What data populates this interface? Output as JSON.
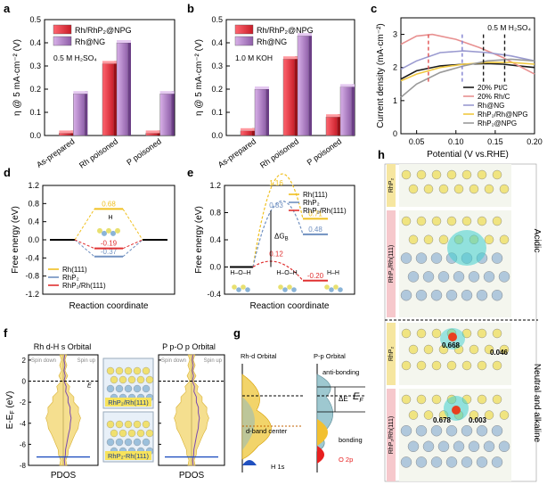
{
  "panels": {
    "a": "a",
    "b": "b",
    "c": "c",
    "d": "d",
    "e": "e",
    "f": "f",
    "g": "g",
    "h": "h"
  },
  "chart_data": [
    {
      "id": "a",
      "type": "bar",
      "categories": [
        "As-prepared",
        "Rh poisoned",
        "P poisoned"
      ],
      "series": [
        {
          "name": "Rh/RhP₂@NPG",
          "color": "#e8383d",
          "values": [
            0.01,
            0.31,
            0.01
          ]
        },
        {
          "name": "Rh@NG",
          "color": "#b080c8",
          "values": [
            0.18,
            0.4,
            0.18
          ]
        }
      ],
      "annotation": "0.5 M H₂SO₄",
      "ylabel": "η @ 5 mA·cm⁻² (V)",
      "ylim": [
        0.0,
        0.5
      ],
      "yticks": [
        "0.0",
        "0.1",
        "0.2",
        "0.3",
        "0.4",
        "0.5"
      ]
    },
    {
      "id": "b",
      "type": "bar",
      "categories": [
        "As-prepared",
        "Rh poisoned",
        "P poisoned"
      ],
      "series": [
        {
          "name": "Rh/RhP₂@NPG",
          "color": "#e8383d",
          "values": [
            0.02,
            0.33,
            0.08
          ]
        },
        {
          "name": "Rh@NG",
          "color": "#b080c8",
          "values": [
            0.2,
            0.43,
            0.21
          ]
        }
      ],
      "annotation": "1.0 M KOH",
      "ylabel": "η @ 5 mA·cm⁻² (V)",
      "ylim": [
        0.0,
        0.5
      ],
      "yticks": [
        "0.0",
        "0.1",
        "0.2",
        "0.3",
        "0.4",
        "0.5"
      ]
    },
    {
      "id": "c",
      "type": "line",
      "annotation": "0.5 M H₂SO₄",
      "xlabel": "Potential (V vs.RHE)",
      "ylabel": "Current density (mA·cm⁻²)",
      "xlim": [
        0.03,
        0.2
      ],
      "ylim": [
        0.0,
        3.5
      ],
      "xticks": [
        "0.05",
        "0.10",
        "0.15",
        "0.20"
      ],
      "yticks": [
        "0",
        "1",
        "2",
        "3"
      ],
      "series": [
        {
          "name": "20% Pt/C",
          "color": "#1a1a1a",
          "x": [
            0.03,
            0.05,
            0.08,
            0.11,
            0.14,
            0.16,
            0.18,
            0.2
          ],
          "y": [
            1.65,
            1.9,
            2.05,
            2.1,
            2.12,
            2.1,
            2.05,
            2.0
          ]
        },
        {
          "name": "20% Rh/C",
          "color": "#e89090",
          "x": [
            0.03,
            0.05,
            0.07,
            0.1,
            0.13,
            0.16,
            0.18,
            0.2
          ],
          "y": [
            2.7,
            2.95,
            3.0,
            2.85,
            2.6,
            2.3,
            2.05,
            1.8
          ]
        },
        {
          "name": "Rh@NG",
          "color": "#9a9ad0",
          "x": [
            0.03,
            0.05,
            0.08,
            0.11,
            0.14,
            0.17,
            0.2
          ],
          "y": [
            1.95,
            2.2,
            2.45,
            2.5,
            2.45,
            2.35,
            2.2
          ]
        },
        {
          "name": "RhP₂/Rh@NPG",
          "color": "#f0c840",
          "x": [
            0.03,
            0.05,
            0.08,
            0.11,
            0.14,
            0.17,
            0.2
          ],
          "y": [
            1.6,
            1.8,
            2.0,
            2.1,
            2.15,
            2.15,
            2.1
          ]
        },
        {
          "name": "RhP₂@NPG",
          "color": "#9a9a9a",
          "x": [
            0.03,
            0.05,
            0.08,
            0.11,
            0.14,
            0.17,
            0.2
          ],
          "y": [
            1.1,
            1.5,
            1.85,
            2.05,
            2.2,
            2.25,
            2.2
          ]
        }
      ],
      "markers": [
        {
          "x": 0.065,
          "color": "#e05050",
          "style": "dashed"
        },
        {
          "x": 0.108,
          "color": "#8080d0",
          "style": "dashed"
        },
        {
          "x": 0.135,
          "color": "#1a1a1a",
          "style": "dashed"
        },
        {
          "x": 0.162,
          "color": "#1a1a1a",
          "style": "dashed"
        }
      ]
    },
    {
      "id": "d",
      "type": "line",
      "xlabel": "Reaction coordinate",
      "ylabel": "Free energy (eV)",
      "ylim": [
        -1.2,
        1.2
      ],
      "yticks": [
        "-1.2",
        "-0.8",
        "-0.4",
        "0.0",
        "0.4",
        "0.8",
        "1.2"
      ],
      "series": [
        {
          "name": "Rh(111)",
          "color": "#f0c020",
          "value": 0.68,
          "label": "0.68"
        },
        {
          "name": "RhP₂",
          "color": "#7090c0",
          "value": -0.37,
          "label": "-0.37"
        },
        {
          "name": "RhP₂/Rh(111)",
          "color": "#e03030",
          "value": -0.19,
          "label": "-0.19"
        }
      ],
      "annotation": "H"
    },
    {
      "id": "e",
      "type": "line",
      "xlabel": "Reaction coordinate",
      "ylabel": "Free energy (eV)",
      "ylim": [
        -0.4,
        1.2
      ],
      "yticks": [
        "-0.4",
        "0.0",
        "0.4",
        "0.8",
        "1.2"
      ],
      "series": [
        {
          "name": "Rh(111)",
          "color": "#f0c020",
          "ts": 1.16,
          "fs": 0.71,
          "labels": [
            "1.16",
            "0.71"
          ]
        },
        {
          "name": "RhP₂",
          "color": "#7090c0",
          "ts": 0.83,
          "fs": 0.48,
          "labels": [
            "0.83",
            "0.48"
          ]
        },
        {
          "name": "RhP₂/Rh(111)",
          "color": "#e03030",
          "ts": 0.12,
          "fs": -0.2,
          "labels": [
            "0.12",
            "-0.20"
          ]
        }
      ],
      "dG_label": "ΔG",
      "dG_sub": "B",
      "states": [
        "H–O–H",
        "H–O–H",
        "H–H"
      ]
    },
    {
      "id": "f",
      "type": "area",
      "titles": [
        "Rh d-H s Orbital",
        "P p-O p Orbital"
      ],
      "legend": [
        "Spin down",
        "Spin up"
      ],
      "ylabel": "E-E",
      "ylabel_sub": "F",
      "ylabel_unit": "(eV)",
      "yticks": [
        "2",
        "0",
        "-2",
        "-4",
        "-6",
        "-8"
      ],
      "xlabel": "PDOS",
      "xlabel2": "PDOS",
      "ef_label": "E",
      "structure_labels": [
        "RhP₂/Rh(111)",
        "RhP₂-Rh(111)"
      ]
    },
    {
      "id": "g",
      "type": "area",
      "titles": [
        "Rh-d Orbital",
        "P-p Orbital"
      ],
      "labels": [
        "anti-bonding",
        "ΔE",
        "E",
        "F",
        "d-band center",
        "bonding",
        "O 2p",
        "H 1s"
      ]
    },
    {
      "id": "h",
      "type": "other",
      "side_labels": [
        "Acidic",
        "Neutral and alkaline"
      ],
      "structures": [
        "RhP₂",
        "RhP₂/Rh(111)",
        "RhP₂",
        "RhP₂/Rh(111)"
      ],
      "values": [
        "0.668",
        "0.046",
        "0.678",
        "0.003"
      ]
    }
  ]
}
